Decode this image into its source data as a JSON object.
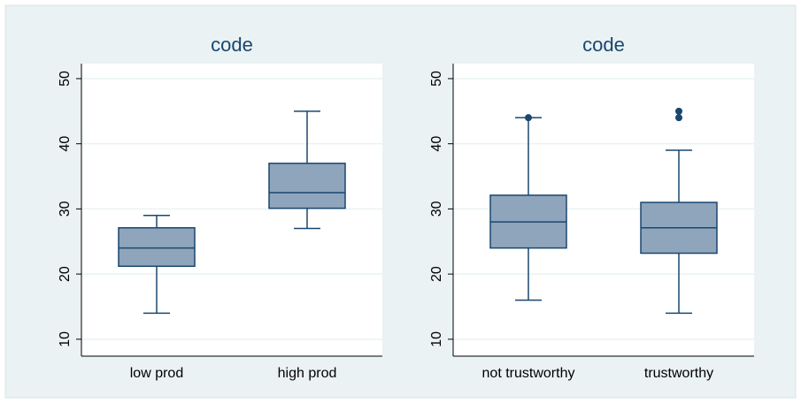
{
  "chart_data": [
    {
      "type": "box",
      "title": "code",
      "categories": [
        "low prod",
        "high prod"
      ],
      "boxes": [
        {
          "min": 14,
          "q1": 21.2,
          "median": 24,
          "q3": 27.1,
          "max": 29
        },
        {
          "min": 27,
          "q1": 30.1,
          "median": 32.5,
          "q3": 37,
          "max": 45
        }
      ],
      "ylim": [
        7.4,
        52.3
      ],
      "yticks": [
        10,
        20,
        30,
        40,
        50
      ],
      "grid": true,
      "color": "#8fa5bc",
      "line_color": "#1a476f"
    },
    {
      "type": "box",
      "title": "code",
      "categories": [
        "not trustworthy",
        "trustworthy"
      ],
      "boxes": [
        {
          "min": 16,
          "q1": 24,
          "median": 28,
          "q3": 32.1,
          "max": 44,
          "outliers": [
            44
          ]
        },
        {
          "min": 14,
          "q1": 23.2,
          "median": 27.1,
          "q3": 31,
          "max": 39,
          "outliers": [
            44,
            45
          ]
        }
      ],
      "ylim": [
        7.4,
        52.3
      ],
      "yticks": [
        10,
        20,
        30,
        40,
        50
      ],
      "grid": true,
      "color": "#8fa5bc",
      "line_color": "#1a476f"
    }
  ]
}
